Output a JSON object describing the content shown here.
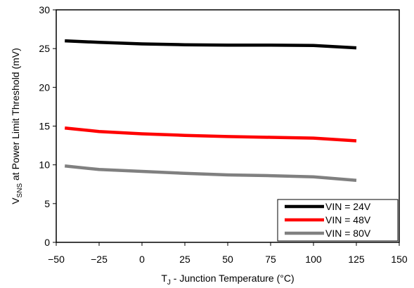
{
  "chart_data": {
    "type": "line",
    "xlabel": {
      "main": "T",
      "sub": "J",
      "rest": " - Junction Temperature (°C)"
    },
    "ylabel": {
      "main": "V",
      "sub": "SNS",
      "rest": " at Power Limit Threshold  (mV)"
    },
    "xlim": [
      -50,
      150
    ],
    "ylim": [
      0,
      30
    ],
    "xticks": [
      -50,
      -25,
      0,
      25,
      50,
      75,
      100,
      125,
      150
    ],
    "yticks": [
      0,
      5,
      10,
      15,
      20,
      25,
      30
    ],
    "xtick_labels": [
      "−50",
      "−25",
      "0",
      "25",
      "50",
      "75",
      "100",
      "125",
      "150"
    ],
    "ytick_labels": [
      "0",
      "5",
      "10",
      "15",
      "20",
      "25",
      "30"
    ],
    "grid": false,
    "legend_position": "bottom-right",
    "series": [
      {
        "name": "VIN = 24V",
        "color": "#000000",
        "x": [
          -45,
          -25,
          0,
          25,
          50,
          75,
          100,
          125
        ],
        "y": [
          26.0,
          25.8,
          25.6,
          25.5,
          25.45,
          25.45,
          25.4,
          25.1
        ]
      },
      {
        "name": "VIN = 48V",
        "color": "#ff0000",
        "x": [
          -45,
          -25,
          0,
          25,
          50,
          75,
          100,
          125
        ],
        "y": [
          14.75,
          14.3,
          14.0,
          13.8,
          13.65,
          13.55,
          13.45,
          13.1
        ]
      },
      {
        "name": "VIN = 80V",
        "color": "#808080",
        "x": [
          -45,
          -25,
          0,
          25,
          50,
          75,
          100,
          125
        ],
        "y": [
          9.85,
          9.4,
          9.15,
          8.9,
          8.7,
          8.6,
          8.45,
          8.0
        ]
      }
    ]
  }
}
